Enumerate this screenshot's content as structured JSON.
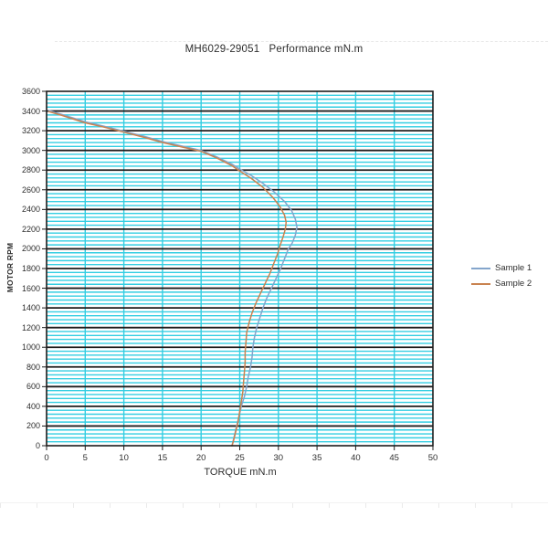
{
  "chart": {
    "title": "MH6029-29051   Performance mN.m",
    "x_axis": {
      "label": "TORQUE mN.m",
      "min": 0,
      "max": 50,
      "tick_step": 5,
      "tick_labels": [
        "0",
        "5",
        "10",
        "15",
        "20",
        "25",
        "30",
        "35",
        "40",
        "45",
        "50"
      ]
    },
    "y_axis": {
      "label": "MOTOR RPM",
      "min": 0,
      "max": 3600,
      "major_step": 200,
      "minor_step": 40,
      "tick_labels": [
        "0",
        "200",
        "400",
        "600",
        "800",
        "1000",
        "1200",
        "1400",
        "1600",
        "1800",
        "2000",
        "2200",
        "2400",
        "2600",
        "2800",
        "3000",
        "3200",
        "3400",
        "3600"
      ]
    },
    "legend": {
      "position": "right",
      "items": [
        {
          "label": "Sample 1",
          "color": "#84a5cc"
        },
        {
          "label": "Sample 2",
          "color": "#c98350"
        }
      ]
    },
    "colors": {
      "minor_grid": "#33cee2",
      "major_grid": "#1c1c1c",
      "axis": "#1c1c1c",
      "plot_background": "#ffffff"
    }
  },
  "chart_data": {
    "type": "line",
    "title": "MH6029-29051   Performance mN.m",
    "xlabel": "TORQUE mN.m",
    "ylabel": "MOTOR RPM",
    "xlim": [
      0,
      50
    ],
    "ylim": [
      0,
      3600
    ],
    "x_tick_step": 5,
    "y_major_step": 200,
    "y_minor_step": 40,
    "grid": "cyan minor horizontal every 40 RPM, cyan vertical every 5 mN.m, black major horizontal every 200 RPM",
    "legend_position": "right",
    "series": [
      {
        "name": "Sample 1",
        "color": "#84a5cc",
        "points_format": "[torque_mNm, rpm]",
        "points": [
          [
            0.3,
            3405
          ],
          [
            2,
            3365
          ],
          [
            5,
            3290
          ],
          [
            7.5,
            3245
          ],
          [
            10,
            3195
          ],
          [
            12.5,
            3145
          ],
          [
            15,
            3090
          ],
          [
            17.5,
            3045
          ],
          [
            20,
            3000
          ],
          [
            22,
            2935
          ],
          [
            24,
            2860
          ],
          [
            25,
            2810
          ],
          [
            26.5,
            2745
          ],
          [
            28,
            2665
          ],
          [
            29.5,
            2575
          ],
          [
            30.8,
            2480
          ],
          [
            31.7,
            2390
          ],
          [
            32.2,
            2300
          ],
          [
            32.4,
            2220
          ],
          [
            32.2,
            2140
          ],
          [
            31.8,
            2060
          ],
          [
            31.3,
            2000
          ],
          [
            30.8,
            1900
          ],
          [
            30.3,
            1800
          ],
          [
            29.7,
            1700
          ],
          [
            29.1,
            1600
          ],
          [
            28.5,
            1500
          ],
          [
            28.0,
            1400
          ],
          [
            27.6,
            1300
          ],
          [
            27.2,
            1200
          ],
          [
            26.9,
            1100
          ],
          [
            26.7,
            1000
          ],
          [
            26.6,
            900
          ],
          [
            26.4,
            800
          ],
          [
            26.1,
            700
          ],
          [
            25.9,
            600
          ],
          [
            25.6,
            500
          ],
          [
            25.2,
            400
          ],
          [
            24.9,
            300
          ],
          [
            24.6,
            200
          ],
          [
            24.3,
            100
          ],
          [
            24.0,
            0
          ]
        ]
      },
      {
        "name": "Sample 2",
        "color": "#c98350",
        "points_format": "[torque_mNm, rpm]",
        "points": [
          [
            0.3,
            3395
          ],
          [
            2,
            3355
          ],
          [
            5,
            3280
          ],
          [
            7.5,
            3235
          ],
          [
            10,
            3185
          ],
          [
            12.5,
            3135
          ],
          [
            15,
            3080
          ],
          [
            17.5,
            3035
          ],
          [
            20,
            2990
          ],
          [
            22,
            2925
          ],
          [
            24,
            2845
          ],
          [
            25,
            2790
          ],
          [
            26.5,
            2715
          ],
          [
            28,
            2625
          ],
          [
            29.3,
            2520
          ],
          [
            30.2,
            2430
          ],
          [
            30.8,
            2340
          ],
          [
            31.0,
            2270
          ],
          [
            30.9,
            2200
          ],
          [
            30.6,
            2120
          ],
          [
            30.2,
            2030
          ],
          [
            29.9,
            1950
          ],
          [
            29.4,
            1850
          ],
          [
            28.9,
            1750
          ],
          [
            28.3,
            1650
          ],
          [
            27.7,
            1550
          ],
          [
            27.1,
            1450
          ],
          [
            26.6,
            1350
          ],
          [
            26.2,
            1250
          ],
          [
            25.9,
            1150
          ],
          [
            25.8,
            1050
          ],
          [
            25.7,
            950
          ],
          [
            25.7,
            850
          ],
          [
            25.6,
            750
          ],
          [
            25.5,
            650
          ],
          [
            25.4,
            550
          ],
          [
            25.2,
            450
          ],
          [
            25.0,
            350
          ],
          [
            24.8,
            250
          ],
          [
            24.5,
            150
          ],
          [
            24.2,
            50
          ],
          [
            24.0,
            0
          ]
        ]
      }
    ]
  }
}
